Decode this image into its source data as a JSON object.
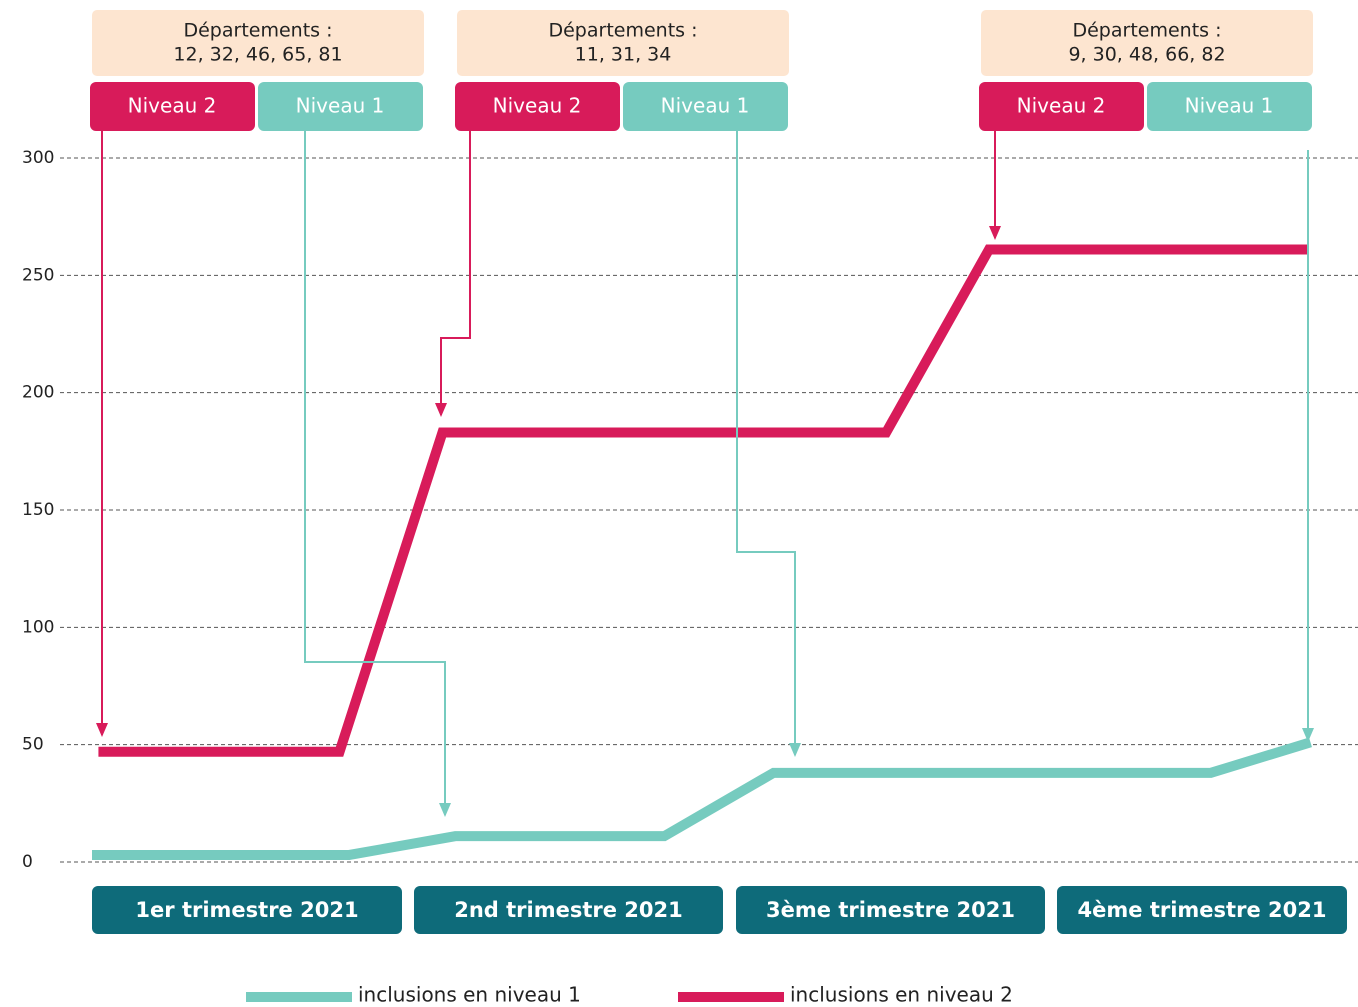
{
  "chart_data": {
    "type": "line",
    "categories": [
      "1er trimestre 2021",
      "2nd trimestre 2021",
      "3ème trimestre 2021",
      "4ème trimestre 2021"
    ],
    "xlim": [
      0,
      4
    ],
    "ylim": [
      0,
      300
    ],
    "yticks": [
      0,
      50,
      100,
      150,
      200,
      250,
      300
    ],
    "grid": true,
    "series": [
      {
        "name": "inclusions en niveau 1",
        "color": "#76cbbf",
        "x": [
          0,
          0.8,
          1.13,
          1.78,
          2.12,
          3.48,
          3.79
        ],
        "values": [
          3,
          3,
          11,
          11,
          38,
          38,
          51
        ]
      },
      {
        "name": "inclusions en niveau 2",
        "color": "#d81b5a",
        "x": [
          0.02,
          0.77,
          1.09,
          2.47,
          2.79,
          3.78
        ],
        "values": [
          47,
          47,
          183,
          183,
          261,
          261
        ]
      }
    ],
    "annotations": [
      {
        "title": "Départements :",
        "text": "12, 32, 46, 65, 81",
        "levels": [
          "Niveau 2",
          "Niveau 1"
        ]
      },
      {
        "title": "Départements :",
        "text": "11, 31, 34",
        "levels": [
          "Niveau 2",
          "Niveau 1"
        ]
      },
      {
        "title": "Départements :",
        "text": "9, 30, 48, 66, 82",
        "levels": [
          "Niveau 2",
          "Niveau 1"
        ]
      }
    ]
  }
}
